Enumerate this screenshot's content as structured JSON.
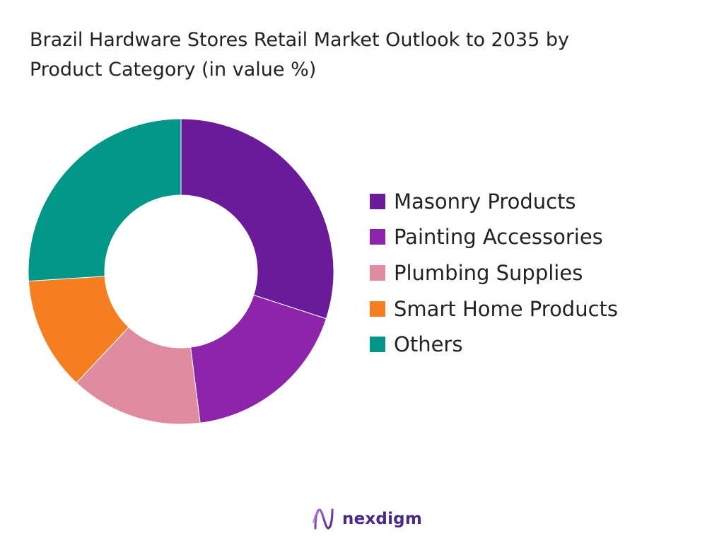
{
  "title_line1": "Brazil Hardware Stores Retail Market Outlook to 2035 by",
  "title_line2": "Product Category (in value %)",
  "brand": {
    "name": "nexdigm",
    "icon": "nexdigm-logo-icon"
  },
  "chart_data": {
    "type": "pie",
    "donut": true,
    "title": "Brazil Hardware Stores Retail Market Outlook to 2035 by Product Category (in value %)",
    "legend_position": "right",
    "categories": [
      "Masonry Products",
      "Painting Accessories",
      "Plumbing Supplies",
      "Smart Home Products",
      "Others"
    ],
    "values": [
      30,
      18,
      14,
      12,
      26
    ],
    "colors": [
      "#6a1b9a",
      "#8e24aa",
      "#e08ca0",
      "#f57f20",
      "#009688"
    ],
    "start_angle_deg": 0,
    "direction": "clockwise"
  }
}
